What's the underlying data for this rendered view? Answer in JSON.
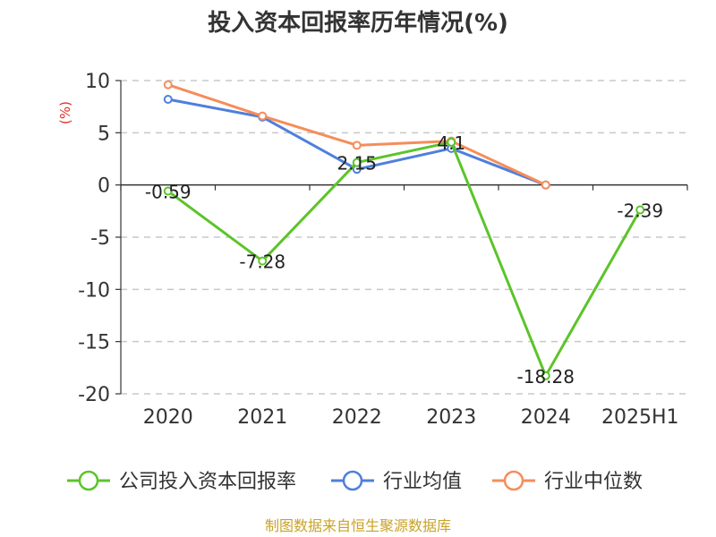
{
  "chart_data": {
    "type": "line",
    "title": "投入资本回报率历年情况(%)",
    "ylabel": "(%)",
    "categories": [
      "2020",
      "2021",
      "2022",
      "2023",
      "2024",
      "2025H1"
    ],
    "ylim": [
      -20,
      10
    ],
    "yticks": [
      10,
      5,
      0,
      -5,
      -10,
      -15,
      -20
    ],
    "grid": true,
    "legend_position": "bottom",
    "series": [
      {
        "name": "公司投入资本回报率",
        "color": "#5cc42a",
        "values": [
          -0.59,
          -7.28,
          2.15,
          4.1,
          -18.28,
          -2.39
        ],
        "labels": [
          "-0.59",
          "-7.28",
          "2.15",
          "4.1",
          "-18.28",
          "-2.39"
        ]
      },
      {
        "name": "行业均值",
        "color": "#4f7fdc",
        "values": [
          8.2,
          6.5,
          1.5,
          3.5,
          0,
          null
        ]
      },
      {
        "name": "行业中位数",
        "color": "#f58d5a",
        "values": [
          9.6,
          6.6,
          3.8,
          4.2,
          0,
          null
        ]
      }
    ]
  },
  "source": "制图数据来自恒生聚源数据库"
}
